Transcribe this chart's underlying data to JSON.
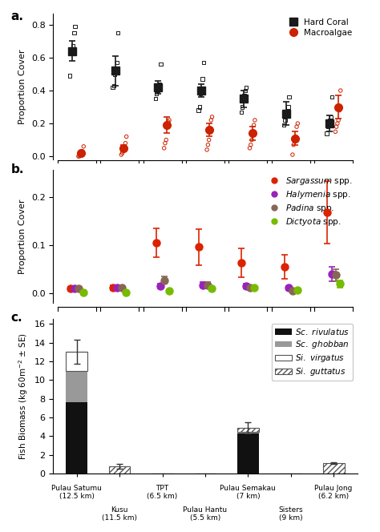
{
  "n_sites": 7,
  "coral_mean": [
    0.64,
    0.52,
    0.42,
    0.4,
    0.35,
    0.26,
    0.2
  ],
  "coral_se": [
    0.06,
    0.09,
    0.04,
    0.04,
    0.05,
    0.07,
    0.05
  ],
  "coral_points": [
    [
      0.49,
      0.64,
      0.65,
      0.67,
      0.75,
      0.79
    ],
    [
      0.42,
      0.43,
      0.5,
      0.53,
      0.57,
      0.75
    ],
    [
      0.35,
      0.38,
      0.4,
      0.42,
      0.44,
      0.56
    ],
    [
      0.28,
      0.3,
      0.38,
      0.4,
      0.47,
      0.57
    ],
    [
      0.27,
      0.3,
      0.34,
      0.37,
      0.4,
      0.42
    ],
    [
      0.19,
      0.22,
      0.25,
      0.27,
      0.3,
      0.36
    ],
    [
      0.14,
      0.18,
      0.19,
      0.22,
      0.24,
      0.36
    ]
  ],
  "algae_mean": [
    0.02,
    0.05,
    0.19,
    0.16,
    0.14,
    0.11,
    0.3
  ],
  "algae_se": [
    0.01,
    0.02,
    0.05,
    0.04,
    0.04,
    0.04,
    0.07
  ],
  "algae_points": [
    [
      0.0,
      0.0,
      0.01,
      0.02,
      0.03,
      0.06
    ],
    [
      0.01,
      0.02,
      0.04,
      0.06,
      0.08,
      0.12
    ],
    [
      0.05,
      0.08,
      0.1,
      0.19,
      0.21,
      0.22
    ],
    [
      0.04,
      0.07,
      0.1,
      0.16,
      0.22,
      0.24
    ],
    [
      0.05,
      0.07,
      0.1,
      0.14,
      0.19,
      0.22
    ],
    [
      0.01,
      0.07,
      0.1,
      0.12,
      0.18,
      0.2
    ],
    [
      0.15,
      0.18,
      0.2,
      0.22,
      0.28,
      0.4
    ]
  ],
  "sargassum_mean": [
    0.01,
    0.012,
    0.105,
    0.096,
    0.063,
    0.055,
    0.168
  ],
  "sargassum_se": [
    0.004,
    0.005,
    0.03,
    0.038,
    0.03,
    0.025,
    0.065
  ],
  "halymenia_mean": [
    0.01,
    0.012,
    0.015,
    0.018,
    0.015,
    0.012,
    0.04
  ],
  "halymenia_se": [
    0.003,
    0.005,
    0.005,
    0.006,
    0.005,
    0.004,
    0.015
  ],
  "padina_mean": [
    0.01,
    0.012,
    0.028,
    0.018,
    0.012,
    0.006,
    0.038
  ],
  "padina_se": [
    0.003,
    0.004,
    0.008,
    0.006,
    0.004,
    0.003,
    0.012
  ],
  "dictyota_mean": [
    0.002,
    0.002,
    0.005,
    0.01,
    0.012,
    0.007,
    0.02
  ],
  "dictyota_se": [
    0.001,
    0.001,
    0.003,
    0.004,
    0.004,
    0.003,
    0.007
  ],
  "rivulatus": [
    7.6,
    0.0,
    0.0,
    0.0,
    4.3,
    0.0,
    0.0
  ],
  "ghobban": [
    3.4,
    0.0,
    0.0,
    0.0,
    0.15,
    0.0,
    0.0
  ],
  "virgatus": [
    2.0,
    0.0,
    0.0,
    0.0,
    0.0,
    0.0,
    0.0
  ],
  "guttatus": [
    0.0,
    0.8,
    0.0,
    0.0,
    0.4,
    0.0,
    1.1
  ],
  "fish_se": [
    1.3,
    0.25,
    0.0,
    0.0,
    0.6,
    0.0,
    0.1
  ],
  "color_coral": "#1a1a1a",
  "color_algae": "#cc2200",
  "color_sargassum": "#dd2200",
  "color_halymenia": "#9922bb",
  "color_padina": "#886655",
  "color_dictyota": "#77bb00",
  "bg_color": "#ffffff"
}
